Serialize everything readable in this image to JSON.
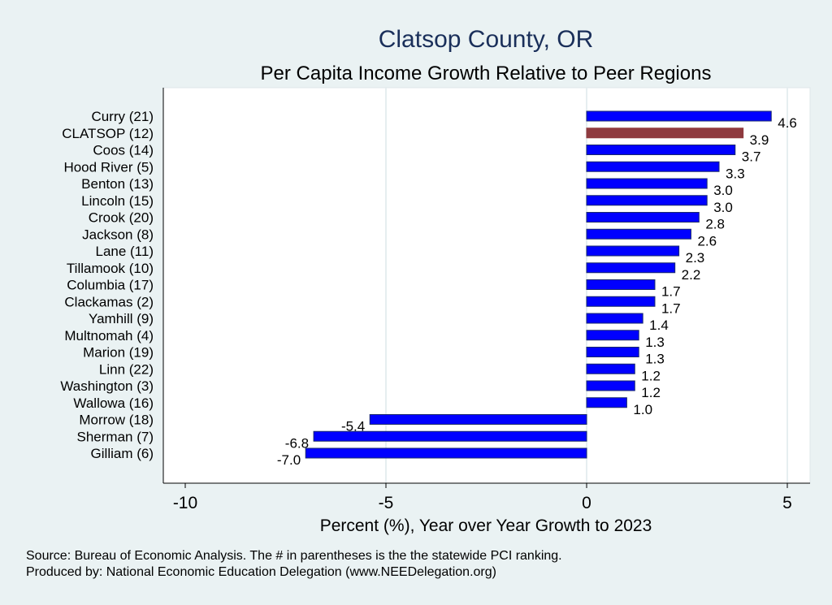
{
  "chart_data": {
    "type": "bar",
    "orientation": "horizontal",
    "title": "Clatsop County, OR",
    "subtitle": "Per Capita Income Growth Relative to Peer Regions",
    "xlabel": "Percent (%), Year over Year Growth to 2023",
    "ylabel": "",
    "xlim": [
      -10.5,
      5.5
    ],
    "xticks": [
      -10,
      -5,
      0,
      5
    ],
    "grid": true,
    "categories": [
      "Curry (21)",
      "CLATSOP (12)",
      "Coos (14)",
      "Hood River  (5)",
      "Benton (13)",
      "Lincoln (15)",
      "Crook (20)",
      "Jackson  (8)",
      "Lane (11)",
      "Tillamook (10)",
      "Columbia (17)",
      "Clackamas  (2)",
      "Yamhill  (9)",
      "Multnomah  (4)",
      "Marion (19)",
      "Linn (22)",
      "Washington  (3)",
      "Wallowa (16)",
      "Morrow (18)",
      "Sherman  (7)",
      "Gilliam  (6)"
    ],
    "values": [
      4.6,
      3.9,
      3.7,
      3.3,
      3.0,
      3.0,
      2.8,
      2.6,
      2.3,
      2.2,
      1.7,
      1.7,
      1.4,
      1.3,
      1.3,
      1.2,
      1.2,
      1.0,
      -5.4,
      -6.8,
      -7.0
    ],
    "labels": [
      "4.6",
      "3.9",
      "3.7",
      "3.3",
      "3.0",
      "3.0",
      "2.8",
      "2.6",
      "2.3",
      "2.2",
      "1.7",
      "1.7",
      "1.4",
      "1.3",
      "1.3",
      "1.2",
      "1.2",
      "1.0",
      "-5.4",
      "-6.8",
      "-7.0"
    ],
    "highlight_index": 1,
    "colors": {
      "bar": "#0000ff",
      "bar_edge": "#1a2a6c",
      "highlight": "#8f3a3f",
      "title": "#1a2f5a",
      "background": "#eaf2f3",
      "plot": "#ffffff"
    }
  },
  "notes": [
    "Source: Bureau of Economic Analysis. The # in parentheses is the the statewide PCI ranking.",
    "Produced by: National Economic Education Delegation (www.NEEDelegation.org)"
  ]
}
